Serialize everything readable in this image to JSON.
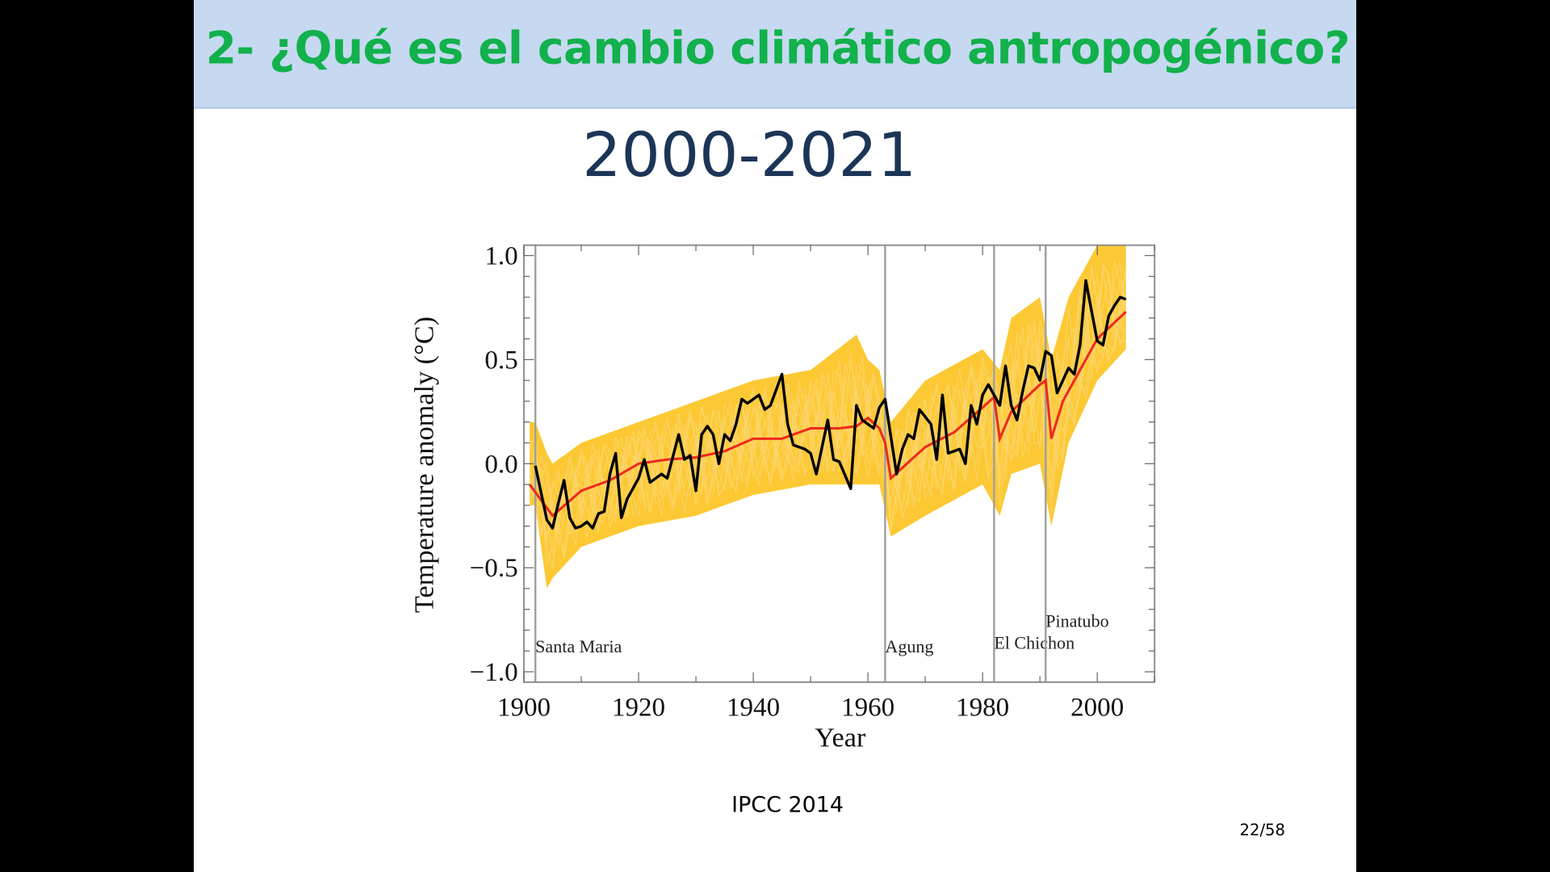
{
  "slide": {
    "title": "2- ¿Qué es el cambio climático antropogénico?",
    "subtitle": "2000-2021",
    "source": "IPCC 2014",
    "page_number": "22/58"
  },
  "colors": {
    "title": "#12b14c",
    "header_bg": "#c6d9f1",
    "subtitle": "#1c3557",
    "observations": "#000000",
    "model_mean": "#ee2a1e",
    "model_runs": "#fbbf10",
    "volcano_lines": "#a0a0a0"
  },
  "chart_data": {
    "type": "line",
    "xlabel": "Year",
    "ylabel": "Temperature anomaly (°C)",
    "xlim": [
      1900,
      2010
    ],
    "ylim": [
      -1.05,
      1.05
    ],
    "xticks": [
      1900,
      1920,
      1940,
      1960,
      1980,
      2000
    ],
    "yticks": [
      -1.0,
      -0.5,
      0.0,
      0.5,
      1.0
    ],
    "ytick_labels": [
      "−1.0",
      "−0.5",
      "0.0",
      "0.5",
      "1.0"
    ],
    "volcanoes": [
      {
        "name": "Santa Maria",
        "year": 1902
      },
      {
        "name": "Agung",
        "year": 1963
      },
      {
        "name": "El Chichon",
        "year": 1982
      },
      {
        "name": "Pinatubo",
        "year": 1991
      }
    ],
    "series": [
      {
        "role": "observations",
        "x": [
          1902,
          1903,
          1904,
          1905,
          1906,
          1907,
          1908,
          1909,
          1910,
          1911,
          1912,
          1913,
          1914,
          1915,
          1916,
          1917,
          1918,
          1920,
          1921,
          1922,
          1924,
          1925,
          1927,
          1928,
          1929,
          1930,
          1931,
          1932,
          1933,
          1934,
          1935,
          1936,
          1937,
          1938,
          1939,
          1941,
          1942,
          1943,
          1945,
          1946,
          1947,
          1949,
          1950,
          1951,
          1953,
          1954,
          1955,
          1957,
          1958,
          1959,
          1961,
          1962,
          1963,
          1965,
          1966,
          1967,
          1968,
          1969,
          1971,
          1972,
          1973,
          1974,
          1976,
          1977,
          1978,
          1979,
          1980,
          1981,
          1983,
          1984,
          1985,
          1986,
          1987,
          1988,
          1989,
          1990,
          1991,
          1992,
          1993,
          1994,
          1995,
          1996,
          1997,
          1998,
          2000,
          2001,
          2002,
          2003,
          2004,
          2005
        ],
        "y": [
          -0.01,
          -0.14,
          -0.27,
          -0.31,
          -0.19,
          -0.08,
          -0.26,
          -0.31,
          -0.3,
          -0.28,
          -0.31,
          -0.24,
          -0.23,
          -0.05,
          0.05,
          -0.26,
          -0.17,
          -0.07,
          0.02,
          -0.09,
          -0.05,
          -0.07,
          0.14,
          0.02,
          0.04,
          -0.13,
          0.14,
          0.18,
          0.14,
          0.0,
          0.14,
          0.11,
          0.19,
          0.31,
          0.29,
          0.33,
          0.26,
          0.28,
          0.43,
          0.19,
          0.09,
          0.07,
          0.05,
          -0.05,
          0.21,
          0.02,
          0.01,
          -0.12,
          0.28,
          0.21,
          0.17,
          0.27,
          0.31,
          -0.05,
          0.07,
          0.14,
          0.12,
          0.26,
          0.19,
          0.02,
          0.33,
          0.05,
          0.07,
          0.0,
          0.28,
          0.19,
          0.33,
          0.38,
          0.28,
          0.47,
          0.28,
          0.21,
          0.35,
          0.47,
          0.46,
          0.4,
          0.54,
          0.52,
          0.34,
          0.4,
          0.46,
          0.43,
          0.57,
          0.88,
          0.59,
          0.57,
          0.71,
          0.76,
          0.8,
          0.79
        ]
      },
      {
        "role": "model_mean",
        "x": [
          1901,
          1905,
          1910,
          1915,
          1920,
          1925,
          1930,
          1935,
          1940,
          1945,
          1950,
          1955,
          1958,
          1960,
          1962,
          1963,
          1964,
          1966,
          1970,
          1975,
          1980,
          1982,
          1983,
          1985,
          1990,
          1991,
          1992,
          1994,
          2000,
          2005
        ],
        "y": [
          -0.1,
          -0.25,
          -0.13,
          -0.08,
          0.0,
          0.02,
          0.03,
          0.06,
          0.12,
          0.12,
          0.17,
          0.17,
          0.18,
          0.22,
          0.17,
          0.1,
          -0.07,
          -0.02,
          0.08,
          0.15,
          0.27,
          0.32,
          0.12,
          0.25,
          0.38,
          0.4,
          0.12,
          0.3,
          0.6,
          0.73
        ]
      },
      {
        "role": "model_runs_range",
        "x": [
          1901,
          1902,
          1904,
          1905,
          1910,
          1920,
          1930,
          1940,
          1950,
          1958,
          1960,
          1962,
          1964,
          1970,
          1980,
          1983,
          1985,
          1990,
          1992,
          1995,
          2000,
          2005
        ],
        "upper": [
          0.2,
          0.2,
          0.05,
          0.0,
          0.1,
          0.2,
          0.3,
          0.4,
          0.45,
          0.62,
          0.5,
          0.45,
          0.2,
          0.4,
          0.55,
          0.45,
          0.7,
          0.8,
          0.5,
          0.8,
          1.05,
          1.05
        ],
        "lower": [
          -0.2,
          -0.2,
          -0.6,
          -0.55,
          -0.4,
          -0.3,
          -0.25,
          -0.15,
          -0.1,
          -0.1,
          -0.1,
          -0.1,
          -0.35,
          -0.25,
          -0.1,
          -0.25,
          -0.05,
          0.0,
          -0.3,
          0.1,
          0.4,
          0.55
        ]
      }
    ]
  }
}
